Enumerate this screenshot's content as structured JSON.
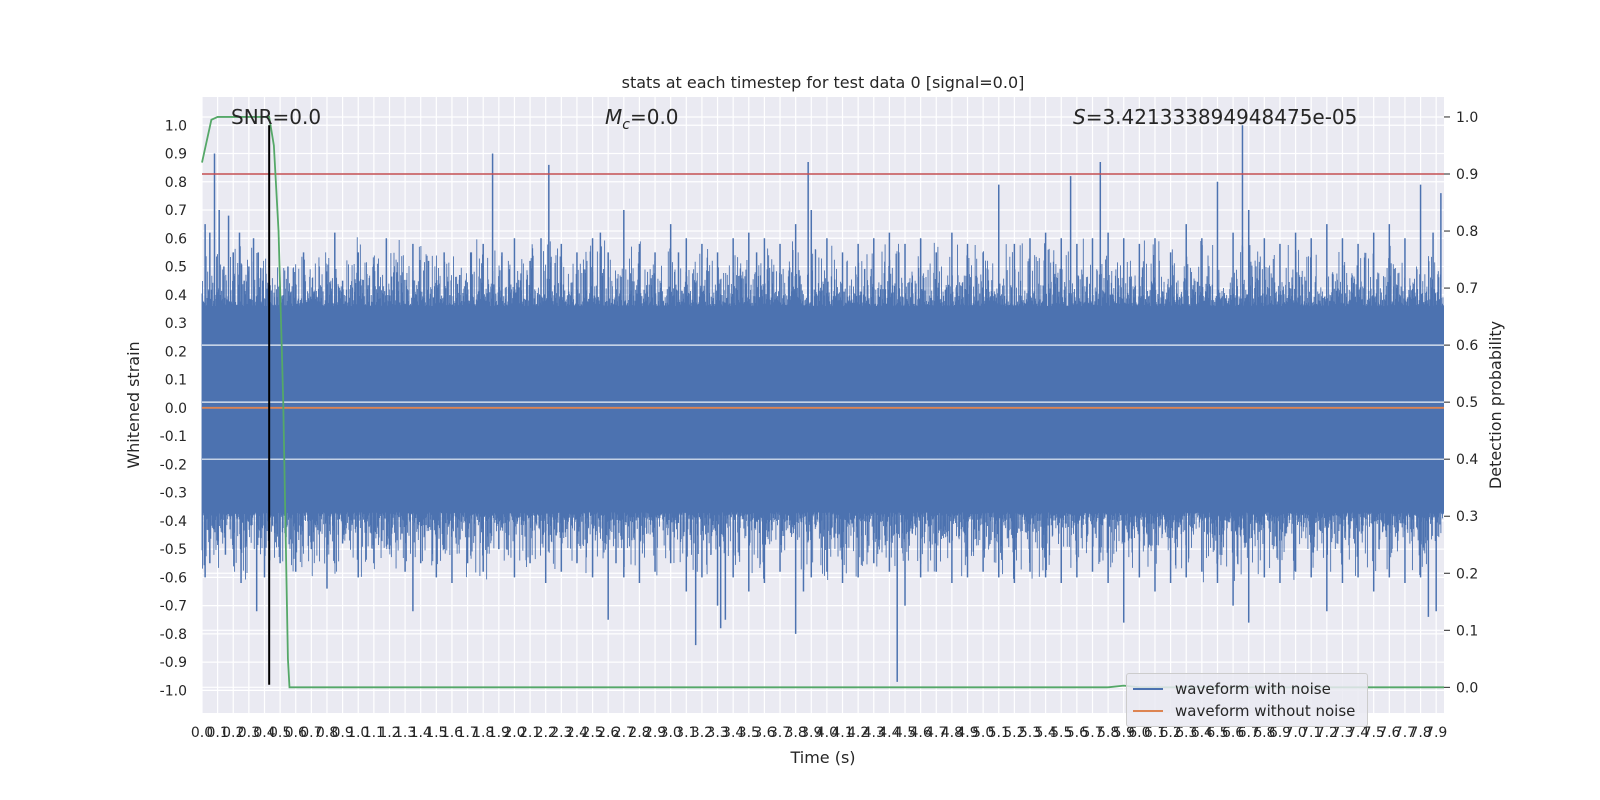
{
  "chart_data": {
    "type": "line",
    "title": "stats at each timestep for test data 0 [signal=0.0]",
    "xlabel": "Time (s)",
    "ylabel": "Whitened strain",
    "y2label": "Detection probability",
    "xlim": [
      0.0,
      7.95
    ],
    "ylim": [
      -1.08,
      1.1
    ],
    "y2lim": [
      -0.045,
      1.035
    ],
    "x_ticks": [
      0.0,
      0.1,
      0.2,
      0.3,
      0.4,
      0.5,
      0.6,
      0.7,
      0.8,
      0.9,
      1.0,
      1.1,
      1.2,
      1.3,
      1.4,
      1.5,
      1.6,
      1.7,
      1.8,
      1.9,
      2.0,
      2.1,
      2.2,
      2.3,
      2.4,
      2.5,
      2.6,
      2.7,
      2.8,
      2.9,
      3.0,
      3.1,
      3.2,
      3.3,
      3.4,
      3.5,
      3.6,
      3.7,
      3.8,
      3.9,
      4.0,
      4.1,
      4.2,
      4.3,
      4.4,
      4.5,
      4.6,
      4.7,
      4.8,
      4.9,
      5.0,
      5.1,
      5.2,
      5.3,
      5.4,
      5.5,
      5.6,
      5.7,
      5.8,
      5.9,
      6.0,
      6.1,
      6.2,
      6.3,
      6.4,
      6.5,
      6.6,
      6.7,
      6.8,
      6.9,
      7.0,
      7.1,
      7.2,
      7.3,
      7.4,
      7.5,
      7.6,
      7.7,
      7.8,
      7.9
    ],
    "y_ticks": [
      -1.0,
      -0.9,
      -0.8,
      -0.7,
      -0.6,
      -0.5,
      -0.4,
      -0.3,
      -0.2,
      -0.1,
      0.0,
      0.1,
      0.2,
      0.3,
      0.4,
      0.5,
      0.6,
      0.7,
      0.8,
      0.9,
      1.0
    ],
    "y2_ticks": [
      0.0,
      0.1,
      0.2,
      0.3,
      0.4,
      0.5,
      0.6,
      0.7,
      0.8,
      0.9,
      1.0
    ],
    "grid": true,
    "legend_position": "lower-right",
    "annotations": {
      "snr": "SNR=0.0",
      "mc_symbol": "M",
      "mc_sub": "c",
      "mc_rest": "=0.0",
      "s_symbol": "S",
      "s_rest": "=3.421333894948475e-05"
    },
    "threshold_line": {
      "axis": "y2",
      "value": 0.9,
      "color": "#c44e52"
    },
    "marker_line": {
      "axis": "x",
      "value": 0.43,
      "y_from": -0.98,
      "y_to": 1.0,
      "color": "#000000"
    },
    "series": [
      {
        "name": "waveform with noise",
        "axis": "y",
        "color": "#4c72b0",
        "envelope_band": [
          -0.37,
          0.36
        ],
        "peak_times": [
          0.02,
          0.05,
          0.08,
          0.11,
          0.14,
          0.17,
          0.2,
          0.24,
          0.27,
          0.3,
          0.33,
          0.36,
          0.39,
          0.42,
          0.55,
          0.65,
          0.75,
          0.85,
          0.9,
          1.0,
          1.1,
          1.18,
          1.25,
          1.35,
          1.45,
          1.55,
          1.65,
          1.72,
          1.8,
          1.86,
          1.92,
          2.0,
          2.1,
          2.17,
          2.22,
          2.3,
          2.4,
          2.5,
          2.55,
          2.6,
          2.7,
          2.8,
          2.9,
          3.0,
          3.05,
          3.1,
          3.2,
          3.3,
          3.4,
          3.5,
          3.55,
          3.6,
          3.7,
          3.8,
          3.88,
          3.9,
          4.0,
          4.1,
          4.2,
          4.3,
          4.4,
          4.46,
          4.5,
          4.6,
          4.7,
          4.8,
          4.9,
          5.0,
          5.1,
          5.2,
          5.3,
          5.4,
          5.5,
          5.56,
          5.6,
          5.7,
          5.75,
          5.8,
          5.9,
          6.0,
          6.1,
          6.2,
          6.3,
          6.4,
          6.5,
          6.6,
          6.66,
          6.7,
          6.8,
          6.9,
          7.0,
          7.1,
          7.2,
          7.3,
          7.4,
          7.5,
          7.6,
          7.7,
          7.8,
          7.88,
          7.93
        ],
        "peak_values": [
          0.65,
          0.62,
          0.9,
          0.7,
          0.5,
          0.68,
          0.55,
          0.62,
          0.45,
          0.5,
          0.6,
          0.55,
          0.45,
          0.42,
          0.5,
          0.55,
          0.5,
          0.62,
          0.45,
          0.55,
          0.5,
          0.6,
          0.48,
          0.58,
          0.52,
          0.55,
          0.47,
          0.55,
          0.58,
          0.9,
          0.55,
          0.6,
          0.52,
          0.6,
          0.86,
          0.58,
          0.55,
          0.6,
          0.62,
          0.55,
          0.7,
          0.58,
          0.55,
          0.65,
          0.55,
          0.6,
          0.58,
          0.55,
          0.6,
          0.62,
          0.55,
          0.6,
          0.58,
          0.65,
          0.87,
          0.7,
          0.6,
          0.55,
          0.58,
          0.6,
          0.62,
          0.55,
          0.58,
          0.6,
          0.55,
          0.62,
          0.58,
          0.55,
          0.79,
          0.58,
          0.6,
          0.62,
          0.6,
          0.82,
          0.58,
          0.6,
          0.87,
          0.62,
          0.6,
          0.58,
          0.6,
          0.55,
          0.65,
          0.6,
          0.8,
          0.62,
          1.0,
          0.7,
          0.6,
          0.58,
          0.62,
          0.6,
          0.65,
          0.6,
          0.58,
          0.62,
          0.65,
          0.6,
          0.79,
          0.62,
          0.76
        ],
        "trough_times": [
          0.02,
          0.05,
          0.1,
          0.15,
          0.2,
          0.25,
          0.28,
          0.35,
          0.4,
          0.5,
          0.6,
          0.7,
          0.8,
          0.85,
          0.9,
          1.0,
          1.1,
          1.2,
          1.3,
          1.35,
          1.4,
          1.5,
          1.55,
          1.6,
          1.7,
          1.8,
          1.9,
          2.0,
          2.1,
          2.2,
          2.3,
          2.4,
          2.5,
          2.6,
          2.65,
          2.7,
          2.8,
          2.9,
          3.0,
          3.1,
          3.16,
          3.2,
          3.3,
          3.32,
          3.35,
          3.4,
          3.5,
          3.6,
          3.7,
          3.8,
          3.85,
          3.9,
          4.0,
          4.1,
          4.2,
          4.3,
          4.4,
          4.45,
          4.5,
          4.6,
          4.7,
          4.8,
          4.9,
          5.0,
          5.1,
          5.2,
          5.3,
          5.4,
          5.5,
          5.6,
          5.7,
          5.8,
          5.9,
          6.0,
          6.1,
          6.2,
          6.3,
          6.4,
          6.5,
          6.6,
          6.7,
          6.8,
          6.9,
          7.0,
          7.1,
          7.2,
          7.3,
          7.4,
          7.5,
          7.6,
          7.7,
          7.8,
          7.85,
          7.9
        ],
        "trough_values": [
          -0.6,
          -0.55,
          -0.45,
          -0.52,
          -0.5,
          -0.62,
          -0.48,
          -0.72,
          -0.6,
          -0.55,
          -0.58,
          -0.5,
          -0.64,
          -0.55,
          -0.48,
          -0.6,
          -0.55,
          -0.5,
          -0.58,
          -0.72,
          -0.55,
          -0.6,
          -0.5,
          -0.62,
          -0.55,
          -0.58,
          -0.5,
          -0.6,
          -0.55,
          -0.62,
          -0.58,
          -0.55,
          -0.6,
          -0.75,
          -0.55,
          -0.6,
          -0.62,
          -0.58,
          -0.55,
          -0.65,
          -0.84,
          -0.6,
          -0.7,
          -0.78,
          -0.75,
          -0.6,
          -0.65,
          -0.62,
          -0.58,
          -0.8,
          -0.65,
          -0.6,
          -0.58,
          -0.62,
          -0.6,
          -0.55,
          -0.58,
          -0.97,
          -0.7,
          -0.6,
          -0.58,
          -0.62,
          -0.6,
          -0.58,
          -0.6,
          -0.62,
          -0.58,
          -0.6,
          -0.62,
          -0.6,
          -0.58,
          -0.62,
          -0.76,
          -0.6,
          -0.65,
          -0.62,
          -0.6,
          -0.58,
          -0.62,
          -0.7,
          -0.76,
          -0.6,
          -0.62,
          -0.58,
          -0.6,
          -0.72,
          -0.62,
          -0.6,
          -0.65,
          -0.6,
          -0.62,
          -0.6,
          -0.74,
          -0.72
        ]
      },
      {
        "name": "waveform without noise",
        "axis": "y",
        "color": "#dd8452",
        "x": [
          0.0,
          7.95
        ],
        "y": [
          0.0,
          0.0
        ]
      },
      {
        "name": "",
        "axis": "y2",
        "color": "#55a868",
        "x": [
          0.0,
          0.06,
          0.1,
          0.2,
          0.3,
          0.43,
          0.46,
          0.49,
          0.52,
          0.55,
          0.56,
          4.5,
          5.8,
          5.9,
          6.0,
          7.95
        ],
        "y": [
          0.92,
          0.995,
          1.0,
          1.0,
          1.0,
          1.0,
          0.95,
          0.8,
          0.5,
          0.05,
          0.0,
          0.0,
          0.0,
          0.003,
          0.0,
          0.0
        ]
      }
    ]
  }
}
